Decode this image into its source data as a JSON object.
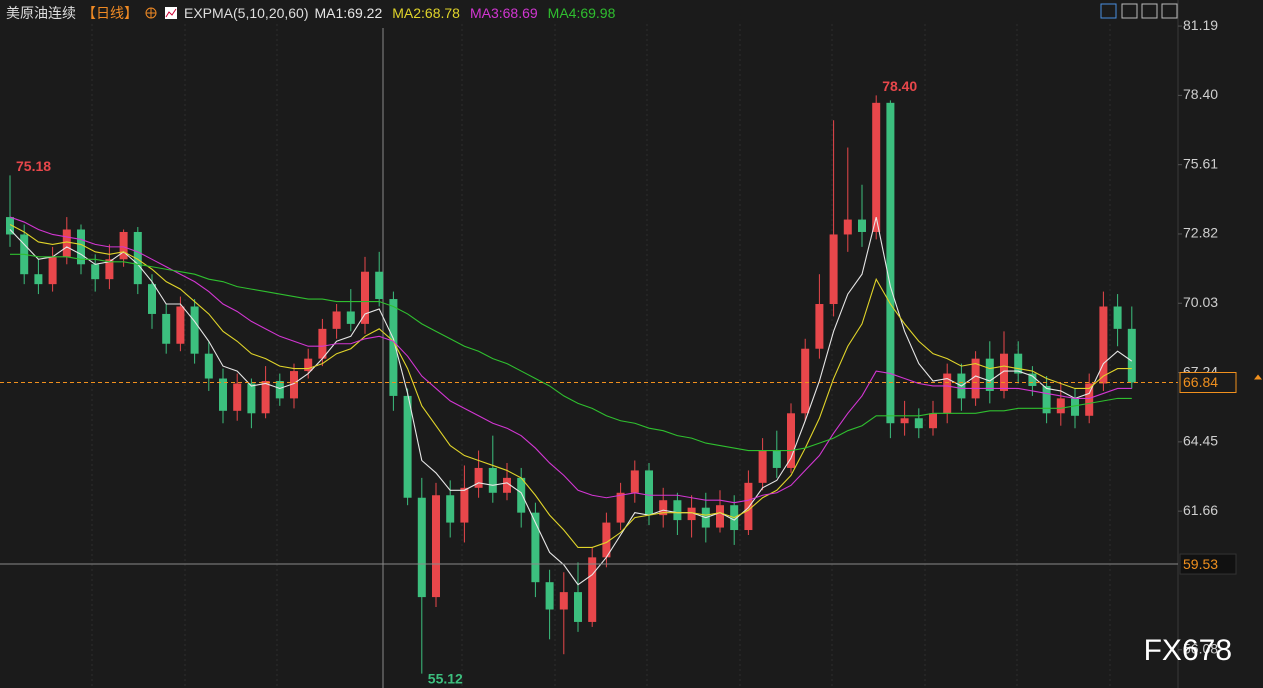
{
  "header": {
    "symbol": "美原油连续",
    "period": "【日线】",
    "indicator": "EXPMA(5,10,20,60)"
  },
  "watermark": "FX678",
  "chart_data": {
    "type": "candlestick",
    "ylim": [
      54.54,
      82.24
    ],
    "yticks": [
      81.19,
      {
        "value": 78.4,
        "label": "78.40"
      },
      75.61,
      72.82,
      70.03,
      67.24,
      64.45,
      61.66,
      56.08
    ],
    "up_color": "#e8474b",
    "down_color": "#3cbf7e",
    "open": [
      73.5,
      72.8,
      71.2,
      70.8,
      71.9,
      73.0,
      71.6,
      71.0,
      71.8,
      72.9,
      70.8,
      69.6,
      68.4,
      69.9,
      68.0,
      67.0,
      65.7,
      66.8,
      65.6,
      66.9,
      66.2,
      67.3,
      67.8,
      69.0,
      69.7,
      69.2,
      71.3,
      70.2,
      66.3,
      62.2,
      58.2,
      62.3,
      61.2,
      62.6,
      63.4,
      62.4,
      63.0,
      61.6,
      58.8,
      57.7,
      58.4,
      57.2,
      59.8,
      61.2,
      62.4,
      63.3,
      61.5,
      62.1,
      61.3,
      61.8,
      61.0,
      61.9,
      60.9,
      62.8,
      64.1,
      63.4,
      65.6,
      68.2,
      70.0,
      72.8,
      73.4,
      72.9,
      78.1,
      65.2,
      65.4,
      65.0,
      65.6,
      67.2,
      66.2,
      67.8,
      66.5,
      68.0,
      67.2,
      66.7,
      65.6,
      66.2,
      65.5,
      66.8,
      69.9,
      69.0
    ],
    "high": [
      75.18,
      73.2,
      71.8,
      72.3,
      73.5,
      73.2,
      72.0,
      72.4,
      73.0,
      73.1,
      71.2,
      70.0,
      70.3,
      70.2,
      68.5,
      67.4,
      67.2,
      67.0,
      67.5,
      67.2,
      67.6,
      68.2,
      69.4,
      70.0,
      70.6,
      71.9,
      72.1,
      70.5,
      66.6,
      63.0,
      62.8,
      62.9,
      63.5,
      64.1,
      64.7,
      63.6,
      63.4,
      62.0,
      59.3,
      59.2,
      59.6,
      60.2,
      61.6,
      62.8,
      63.7,
      63.6,
      62.6,
      62.4,
      62.3,
      62.4,
      62.5,
      62.3,
      63.3,
      64.6,
      64.9,
      66.0,
      68.6,
      71.2,
      77.4,
      76.3,
      74.8,
      78.4,
      78.2,
      66.1,
      65.8,
      66.1,
      67.6,
      67.6,
      68.1,
      68.5,
      68.9,
      68.5,
      67.5,
      67.1,
      66.8,
      66.6,
      67.2,
      70.5,
      70.4,
      69.9
    ],
    "low": [
      72.3,
      70.8,
      70.4,
      70.5,
      71.6,
      71.2,
      70.5,
      70.6,
      71.5,
      70.4,
      69.0,
      68.0,
      68.1,
      67.6,
      66.5,
      65.2,
      65.3,
      65.0,
      65.4,
      65.9,
      65.8,
      67.0,
      67.5,
      68.6,
      68.9,
      68.8,
      69.9,
      65.7,
      61.9,
      55.12,
      57.8,
      60.6,
      60.4,
      62.2,
      62.0,
      62.1,
      61.0,
      58.2,
      56.5,
      55.9,
      56.8,
      57.0,
      59.4,
      60.9,
      62.0,
      61.1,
      61.0,
      60.7,
      60.6,
      60.4,
      60.8,
      60.3,
      60.7,
      62.5,
      63.0,
      63.2,
      65.3,
      67.8,
      69.5,
      72.1,
      72.3,
      72.6,
      64.6,
      64.7,
      64.6,
      64.7,
      65.2,
      65.7,
      65.9,
      66.0,
      66.2,
      66.8,
      66.3,
      65.2,
      65.1,
      65.0,
      65.2,
      66.5,
      68.3,
      66.6
    ],
    "close": [
      72.8,
      71.2,
      70.8,
      71.9,
      73.0,
      71.6,
      71.0,
      71.8,
      72.9,
      70.8,
      69.6,
      68.4,
      69.9,
      68.0,
      67.0,
      65.7,
      66.8,
      65.6,
      66.9,
      66.2,
      67.3,
      67.8,
      69.0,
      69.7,
      69.2,
      71.3,
      70.2,
      66.3,
      62.2,
      58.2,
      62.3,
      61.2,
      62.6,
      63.4,
      62.4,
      63.0,
      61.6,
      58.8,
      57.7,
      58.4,
      57.2,
      59.8,
      61.2,
      62.4,
      63.3,
      61.5,
      62.1,
      61.3,
      61.8,
      61.0,
      61.9,
      60.9,
      62.8,
      64.1,
      63.4,
      65.6,
      68.2,
      70.0,
      72.8,
      73.4,
      72.9,
      78.1,
      65.2,
      65.4,
      65.0,
      65.6,
      67.2,
      66.2,
      67.8,
      66.5,
      68.0,
      67.2,
      66.7,
      65.6,
      66.2,
      65.5,
      66.8,
      69.9,
      69.0,
      66.84
    ],
    "series": [
      {
        "name": "MA1:69.22",
        "color": "#e6e6e6",
        "values": [
          73.0,
          72.4,
          71.8,
          71.9,
          72.3,
          72.0,
          71.6,
          71.7,
          72.1,
          71.6,
          70.9,
          70.0,
          70.0,
          69.3,
          68.5,
          67.5,
          67.3,
          66.7,
          66.8,
          66.6,
          66.8,
          67.2,
          67.8,
          68.5,
          68.7,
          69.6,
          69.8,
          68.6,
          66.4,
          63.7,
          63.2,
          62.5,
          62.5,
          62.8,
          62.7,
          62.8,
          62.4,
          61.2,
          60.0,
          59.5,
          58.7,
          59.1,
          59.8,
          60.7,
          61.6,
          61.5,
          61.7,
          61.6,
          61.6,
          61.4,
          61.6,
          61.3,
          61.8,
          62.6,
          62.9,
          63.8,
          65.3,
          66.9,
          68.9,
          70.4,
          71.2,
          73.5,
          70.7,
          68.9,
          67.6,
          66.9,
          67.0,
          66.7,
          67.1,
          66.9,
          67.3,
          67.3,
          67.1,
          66.6,
          66.5,
          66.2,
          66.4,
          67.6,
          68.1,
          67.7
        ]
      },
      {
        "name": "MA2:68.78",
        "color": "#e0d42a",
        "values": [
          73.2,
          72.9,
          72.5,
          72.4,
          72.5,
          72.4,
          72.1,
          72.0,
          72.1,
          71.8,
          71.4,
          70.9,
          70.6,
          70.1,
          69.6,
          68.9,
          68.5,
          68.0,
          67.8,
          67.5,
          67.4,
          67.4,
          67.6,
          68.0,
          68.2,
          68.7,
          69.0,
          68.5,
          67.4,
          65.9,
          65.1,
          64.3,
          63.9,
          63.7,
          63.5,
          63.3,
          63.0,
          62.3,
          61.5,
          60.9,
          60.2,
          60.2,
          60.4,
          60.8,
          61.4,
          61.5,
          61.6,
          61.6,
          61.6,
          61.5,
          61.6,
          61.4,
          61.7,
          62.2,
          62.5,
          63.1,
          64.2,
          65.4,
          67.0,
          68.3,
          69.2,
          71.0,
          70.0,
          69.2,
          68.5,
          68.0,
          67.8,
          67.5,
          67.6,
          67.4,
          67.5,
          67.4,
          67.3,
          67.0,
          66.8,
          66.6,
          66.6,
          67.1,
          67.4,
          67.4
        ]
      },
      {
        "name": "MA3:68.69",
        "color": "#d236d2",
        "values": [
          73.5,
          73.3,
          73.0,
          72.8,
          72.7,
          72.6,
          72.4,
          72.3,
          72.3,
          72.1,
          71.8,
          71.5,
          71.2,
          70.9,
          70.5,
          70.0,
          69.7,
          69.3,
          69.0,
          68.7,
          68.5,
          68.3,
          68.3,
          68.4,
          68.4,
          68.6,
          68.7,
          68.5,
          67.9,
          67.1,
          66.6,
          66.1,
          65.8,
          65.5,
          65.2,
          65.0,
          64.7,
          64.2,
          63.6,
          63.1,
          62.5,
          62.3,
          62.2,
          62.3,
          62.4,
          62.3,
          62.3,
          62.3,
          62.2,
          62.1,
          62.1,
          62.0,
          62.1,
          62.3,
          62.4,
          62.7,
          63.3,
          63.9,
          64.8,
          65.6,
          66.3,
          67.3,
          67.2,
          67.0,
          66.8,
          66.7,
          66.7,
          66.6,
          66.6,
          66.6,
          66.6,
          66.6,
          66.5,
          66.4,
          66.3,
          66.2,
          66.2,
          66.4,
          66.6,
          66.6
        ]
      },
      {
        "name": "MA4:69.98",
        "color": "#2fbf2f",
        "values": [
          72.0,
          72.0,
          71.9,
          71.9,
          71.9,
          71.8,
          71.8,
          71.7,
          71.7,
          71.6,
          71.5,
          71.4,
          71.3,
          71.2,
          71.0,
          70.9,
          70.7,
          70.6,
          70.5,
          70.4,
          70.3,
          70.2,
          70.2,
          70.1,
          70.1,
          70.1,
          70.1,
          69.9,
          69.6,
          69.2,
          68.9,
          68.6,
          68.3,
          68.1,
          67.8,
          67.6,
          67.3,
          67.0,
          66.7,
          66.3,
          66.0,
          65.8,
          65.5,
          65.3,
          65.2,
          65.0,
          64.9,
          64.7,
          64.6,
          64.4,
          64.3,
          64.2,
          64.1,
          64.1,
          64.1,
          64.1,
          64.2,
          64.4,
          64.6,
          64.9,
          65.1,
          65.5,
          65.5,
          65.5,
          65.5,
          65.6,
          65.6,
          65.6,
          65.6,
          65.7,
          65.7,
          65.8,
          65.8,
          65.8,
          65.8,
          65.9,
          66.0,
          66.1,
          66.2,
          66.2
        ]
      }
    ],
    "high_marks": [
      75.18,
      {
        "value": 78.4,
        "label": "78.40"
      }
    ],
    "low_marks": [
      55.12
    ],
    "last_price": 66.84,
    "last_price_color": "#f0901e",
    "crosshair_price": 59.53
  }
}
